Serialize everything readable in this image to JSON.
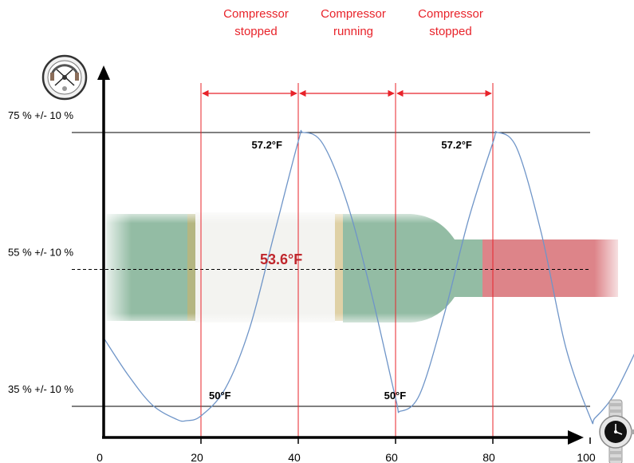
{
  "chart_data": {
    "type": "line",
    "x": [
      0,
      5,
      10,
      15,
      17,
      20,
      25,
      30,
      35,
      40,
      41,
      45,
      50,
      55,
      60,
      61,
      65,
      70,
      75,
      80,
      81,
      85,
      90,
      95,
      100,
      101,
      105,
      110
    ],
    "series": [
      {
        "values": [
          45.0,
          39.6,
          35.2,
          33.1,
          32.9,
          33.6,
          37.6,
          46.4,
          60.0,
          73.7,
          75.0,
          73.4,
          64.8,
          51.6,
          36.2,
          34.3,
          36.8,
          48.4,
          62.3,
          73.5,
          75.0,
          72.6,
          60.2,
          43.6,
          33.4,
          33.3,
          36.8,
          44.0
        ]
      }
    ],
    "xticks": [
      "0",
      "20",
      "40",
      "60",
      "80",
      "100"
    ],
    "xlim": [
      0,
      110
    ],
    "ylim": [
      28,
      88
    ],
    "reference_lines": [
      {
        "label": "75 % +/- 10 %",
        "y": 75,
        "style": "solid"
      },
      {
        "label": "55 % +/- 10 %",
        "y": 55,
        "style": "dashed"
      },
      {
        "label": "35 % +/- 10 %",
        "y": 35,
        "style": "solid"
      }
    ],
    "vertical_lines": [
      20,
      40,
      60,
      80
    ],
    "phases": [
      {
        "from": 20,
        "to": 40,
        "label_line1": "Compressor",
        "label_line2": "stopped"
      },
      {
        "from": 40,
        "to": 60,
        "label_line1": "Compressor",
        "label_line2": "running"
      },
      {
        "from": 60,
        "to": 80,
        "label_line1": "Compressor",
        "label_line2": "stopped"
      }
    ],
    "annotations": [
      {
        "text": "57.2°F",
        "x": 35,
        "y": 75
      },
      {
        "text": "57.2°F",
        "x": 74,
        "y": 75
      },
      {
        "text": "50°F",
        "x": 20,
        "y": 35
      },
      {
        "text": "50°F",
        "x": 56,
        "y": 35
      }
    ],
    "center_label": "53.6°F"
  },
  "colors": {
    "curve": "#6f95c8",
    "phase_lines": "#e8232a",
    "axis": "#000000",
    "center_label": "#c0272d",
    "band_green": "#6fa685",
    "band_red": "#d4656b"
  },
  "icons": {
    "top": "hygrometer-icon",
    "right": "wristwatch-icon"
  }
}
